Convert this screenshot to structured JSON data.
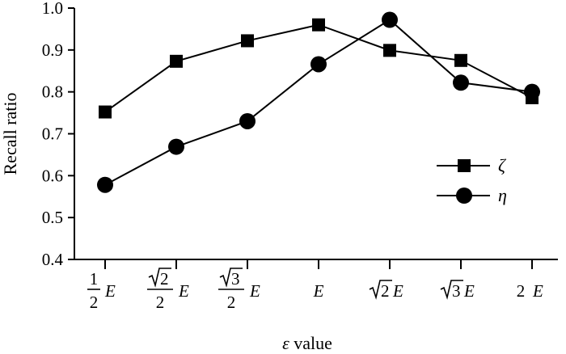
{
  "chart_data": {
    "type": "line",
    "xlabel": {
      "symbol": "ε",
      "text": "value"
    },
    "ylabel": "Recall ratio",
    "ylim": [
      0.4,
      1.0
    ],
    "yticks": [
      "0.4",
      "0.5",
      "0.6",
      "0.7",
      "0.8",
      "0.9",
      "1.0"
    ],
    "categories": [
      "½E",
      "(√2/2)E",
      "(√3/2)E",
      "E",
      "√2E",
      "√3E",
      "2E"
    ],
    "category_labels": [
      {
        "kind": "frac",
        "num": "1",
        "den": "2",
        "suffix": "E"
      },
      {
        "kind": "fracsqrt",
        "num": "2",
        "den": "2",
        "suffix": "E"
      },
      {
        "kind": "fracsqrt",
        "num": "3",
        "den": "2",
        "suffix": "E"
      },
      {
        "kind": "plain",
        "coef": "",
        "suffix": "E"
      },
      {
        "kind": "sqrt",
        "rad": "2",
        "suffix": "E"
      },
      {
        "kind": "sqrt",
        "rad": "3",
        "suffix": "E"
      },
      {
        "kind": "plain",
        "coef": "2",
        "suffix": "E"
      }
    ],
    "series": [
      {
        "name": "ζ",
        "marker": "square",
        "values": [
          0.752,
          0.873,
          0.922,
          0.96,
          0.899,
          0.875,
          0.786
        ]
      },
      {
        "name": "η",
        "marker": "circle",
        "values": [
          0.578,
          0.669,
          0.73,
          0.866,
          0.972,
          0.822,
          0.8
        ]
      }
    ],
    "legend_position": "right",
    "grid": false,
    "colors": {
      "line": "#000000",
      "marker": "#000000"
    }
  }
}
